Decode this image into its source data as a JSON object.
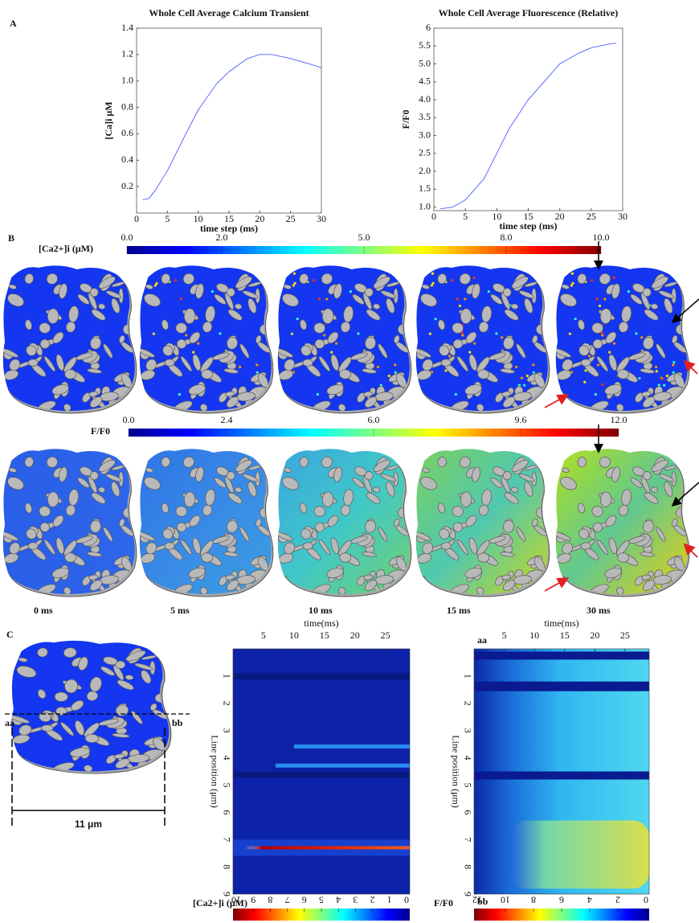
{
  "panel_labels": {
    "a": "A",
    "b": "B",
    "c": "C"
  },
  "chart_data": [
    {
      "type": "line",
      "title": "Whole Cell Average Calcium Transient",
      "xlabel": "time step (ms)",
      "ylabel": "[Ca]i μM",
      "x": [
        1,
        2,
        3,
        5,
        8,
        10,
        13,
        15,
        18,
        20,
        22,
        25,
        28,
        30
      ],
      "series": [
        {
          "color": "#4a5cff",
          "values": [
            0.1,
            0.11,
            0.17,
            0.32,
            0.6,
            0.78,
            0.98,
            1.07,
            1.17,
            1.2,
            1.2,
            1.17,
            1.13,
            1.1
          ]
        }
      ],
      "xlim": [
        0,
        30
      ],
      "xticks": [
        0,
        5,
        10,
        15,
        20,
        25,
        30
      ],
      "ylim": [
        0,
        1.4
      ],
      "yticks": [
        0.2,
        0.4,
        0.6,
        0.8,
        {
          "value": 1,
          "label": "1.0"
        },
        1.2,
        1.4
      ]
    },
    {
      "type": "line",
      "title": "Whole Cell Average Fluorescence (Relative)",
      "xlabel": "time step (ms)",
      "ylabel": "F/F0",
      "x": [
        1,
        3,
        5,
        8,
        10,
        12,
        15,
        18,
        20,
        23,
        25,
        28,
        29
      ],
      "series": [
        {
          "color": "#4a5cff",
          "values": [
            0.95,
            1.0,
            1.2,
            1.8,
            2.5,
            3.2,
            4.0,
            4.6,
            5.0,
            5.3,
            5.45,
            5.56,
            5.58
          ]
        }
      ],
      "xlim": [
        0,
        30
      ],
      "xticks": [
        0,
        5,
        10,
        15,
        20,
        25,
        30
      ],
      "ylim": [
        0.9,
        6
      ],
      "yticks": [
        {
          "value": 1,
          "label": "1.0"
        },
        1.5,
        {
          "value": 2,
          "label": "2.0"
        },
        2.5,
        {
          "value": 3,
          "label": "3.0"
        },
        3.5,
        {
          "value": 4,
          "label": "4.0"
        },
        4.5,
        {
          "value": 5,
          "label": "5.0"
        },
        5.5,
        6
      ]
    }
  ],
  "panel_b": {
    "colorbars": [
      {
        "label": "[Ca2+]i (μM)",
        "lim": [
          0,
          10
        ],
        "ticks": [
          {
            "value": 0,
            "label": "0.0"
          },
          {
            "value": 2,
            "label": "2.0"
          },
          {
            "value": 5,
            "label": "5.0"
          },
          {
            "value": 8,
            "label": "8.0"
          },
          {
            "value": 10,
            "label": "10.0"
          }
        ]
      },
      {
        "label": "F/F0",
        "lim": [
          0,
          12
        ],
        "ticks": [
          {
            "value": 0,
            "label": "0.0"
          },
          2.4,
          {
            "value": 6,
            "label": "6.0"
          },
          9.6,
          {
            "value": 12,
            "label": "12.0"
          }
        ]
      }
    ],
    "time_labels": [
      "0 ms",
      "5 ms",
      "10 ms",
      "15 ms",
      "30 ms"
    ]
  },
  "panel_c": {
    "cell": {
      "start": "aa",
      "end": "bb",
      "scale": "11 μm"
    },
    "heatmaps": [
      {
        "title": "time(ms)",
        "xlim": [
          0,
          29
        ],
        "xticks": [
          5,
          10,
          15,
          20,
          25
        ],
        "ylabel": "Line position (μm)",
        "ylim": [
          0,
          9
        ],
        "yticks": [
          1,
          2,
          3,
          4,
          5,
          6,
          7,
          8,
          9
        ],
        "colorbar_label": "[Ca2+]i (μM)",
        "colorbar_lim": [
          10,
          0
        ],
        "colorbar_ticks": [
          10,
          9,
          8,
          7,
          6,
          5,
          4,
          3,
          2,
          1,
          0
        ]
      },
      {
        "title": "time(ms)",
        "start": "aa",
        "end": "bb",
        "xlim": [
          0,
          29
        ],
        "xticks": [
          5,
          10,
          15,
          20,
          25
        ],
        "ylabel": "Line position (μm)",
        "ylim": [
          0,
          9
        ],
        "yticks": [
          1,
          2,
          3,
          4,
          5,
          6,
          7,
          8,
          9
        ],
        "colorbar_label": "F/F0",
        "colorbar_lim": [
          12,
          0
        ],
        "colorbar_ticks": [
          12,
          10,
          8,
          6,
          4,
          2,
          0
        ]
      }
    ]
  }
}
